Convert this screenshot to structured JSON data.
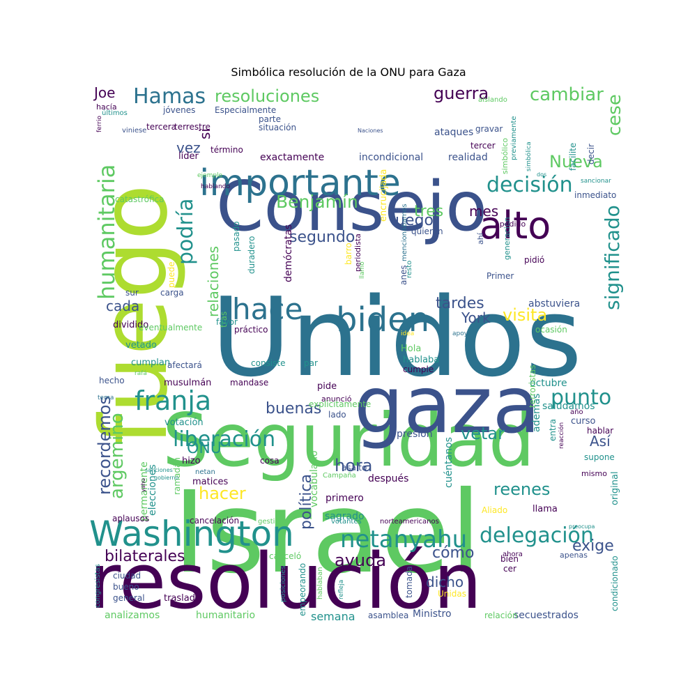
{
  "title": "Simbólica resolución de la ONU para Gaza",
  "palette": [
    "#440154",
    "#472c7a",
    "#3b528b",
    "#2c728e",
    "#21918c",
    "#28ae80",
    "#5ec962",
    "#addc30",
    "#fde725"
  ],
  "words": [
    {
      "text": "Israel"
    },
    {
      "text": "Unidos"
    },
    {
      "text": "Consejo"
    },
    {
      "text": "resolución"
    },
    {
      "text": "Seguridad"
    },
    {
      "text": "fuego"
    },
    {
      "text": "gaza"
    },
    {
      "text": "importante"
    },
    {
      "text": "Washington"
    },
    {
      "text": "biden"
    },
    {
      "text": "alto"
    },
    {
      "text": "hace"
    },
    {
      "text": "franja"
    },
    {
      "text": "netanyahu"
    },
    {
      "text": "liberación"
    },
    {
      "text": "delegación"
    },
    {
      "text": "decisión"
    },
    {
      "text": "punto"
    },
    {
      "text": "humanitaria"
    },
    {
      "text": "podría"
    },
    {
      "text": "resoluciones"
    },
    {
      "text": "significado"
    },
    {
      "text": "Hamas"
    },
    {
      "text": "cambiar"
    },
    {
      "text": "cese"
    },
    {
      "text": "Benjamín"
    },
    {
      "text": "Nueva"
    },
    {
      "text": "guerra"
    },
    {
      "text": "visita"
    },
    {
      "text": "vetar"
    },
    {
      "text": "segundo"
    },
    {
      "text": "luego"
    },
    {
      "text": "ayuda"
    },
    {
      "text": "reenes"
    },
    {
      "text": "hora"
    },
    {
      "text": "hacer"
    },
    {
      "text": "argemino"
    },
    {
      "text": "recordemos"
    },
    {
      "text": "bilaterales"
    },
    {
      "text": "exige"
    },
    {
      "text": "cómo"
    },
    {
      "text": "buenas"
    },
    {
      "text": "relaciones"
    },
    {
      "text": "tardes"
    },
    {
      "text": "York"
    },
    {
      "text": "ONU"
    },
    {
      "text": "política"
    },
    {
      "text": "dicho"
    },
    {
      "text": "tres"
    },
    {
      "text": "mes"
    },
    {
      "text": "Joe"
    },
    {
      "text": "si"
    },
    {
      "text": "vez"
    },
    {
      "text": "cada"
    },
    {
      "text": "Así"
    },
    {
      "text": "exactamente"
    },
    {
      "text": "incondicional"
    },
    {
      "text": "realidad"
    },
    {
      "text": "ataques"
    },
    {
      "text": "previamente"
    },
    {
      "text": "elecciones"
    },
    {
      "text": "demócratas"
    },
    {
      "text": "abstuviera"
    },
    {
      "text": "octubre"
    },
    {
      "text": "saludamos"
    },
    {
      "text": "presión"
    },
    {
      "text": "además"
    },
    {
      "text": "cuéntanos"
    },
    {
      "text": "vocabulario"
    },
    {
      "text": "permanente"
    },
    {
      "text": "después"
    },
    {
      "text": "primero"
    },
    {
      "text": "sagrado"
    },
    {
      "text": "semana"
    },
    {
      "text": "Ministro"
    },
    {
      "text": "secuestrados"
    },
    {
      "text": "analizamos"
    },
    {
      "text": "humanitario"
    },
    {
      "text": "traslado"
    },
    {
      "text": "votación"
    },
    {
      "text": "musulmán"
    },
    {
      "text": "mandase"
    },
    {
      "text": "pide"
    },
    {
      "text": "anunció"
    },
    {
      "text": "curso"
    },
    {
      "text": "hablar"
    },
    {
      "text": "supone"
    },
    {
      "text": "llama"
    },
    {
      "text": "terroristas"
    },
    {
      "text": "original"
    },
    {
      "text": "mismo"
    },
    {
      "text": "condicionado"
    },
    {
      "text": "ramadán"
    },
    {
      "text": "hizo"
    },
    {
      "text": "netan"
    },
    {
      "text": "matices"
    },
    {
      "text": "cosa"
    },
    {
      "text": "asalto"
    },
    {
      "text": "aplausos"
    },
    {
      "text": "cancelación"
    },
    {
      "text": "gestión"
    },
    {
      "text": "votantes"
    },
    {
      "text": "norteamericanos"
    },
    {
      "text": "canceló"
    },
    {
      "text": "ahora"
    },
    {
      "text": "cer"
    },
    {
      "text": "bien"
    },
    {
      "text": "apenas"
    },
    {
      "text": "ciudad"
    },
    {
      "text": "bueno"
    },
    {
      "text": "general"
    },
    {
      "text": "congresistas"
    },
    {
      "text": "posiciones"
    },
    {
      "text": "empeorando"
    },
    {
      "text": "hablaban"
    },
    {
      "text": "refleja"
    },
    {
      "text": "tomada"
    },
    {
      "text": "Unidas"
    },
    {
      "text": "asamblea"
    },
    {
      "text": "relación"
    },
    {
      "text": "dividido"
    },
    {
      "text": "vetado"
    },
    {
      "text": "cumplan"
    },
    {
      "text": "rafá"
    },
    {
      "text": "afectará"
    },
    {
      "text": "Hola"
    },
    {
      "text": "hablaba"
    },
    {
      "text": "cumple"
    },
    {
      "text": "par"
    },
    {
      "text": "idea"
    },
    {
      "text": "apoyo"
    },
    {
      "text": "ocasión"
    },
    {
      "text": "eventualmente"
    },
    {
      "text": "práctico"
    },
    {
      "text": "tras"
    },
    {
      "text": "favor"
    },
    {
      "text": "consiste"
    },
    {
      "text": "sur"
    },
    {
      "text": "carga"
    },
    {
      "text": "puede"
    },
    {
      "text": "pasado"
    },
    {
      "text": "duradero"
    },
    {
      "text": "periodista"
    },
    {
      "text": "mencionábamos"
    },
    {
      "text": "barro"
    },
    {
      "text": "llamó"
    },
    {
      "text": "encrucijada"
    },
    {
      "text": "generación"
    },
    {
      "text": "pidió"
    },
    {
      "text": "ahí"
    },
    {
      "text": "anes"
    },
    {
      "text": "resto"
    },
    {
      "text": "Primer"
    },
    {
      "text": "quieren"
    },
    {
      "text": "apedido"
    },
    {
      "text": "inmediato"
    },
    {
      "text": "ejemplo"
    },
    {
      "text": "hablando"
    },
    {
      "text": "dos"
    },
    {
      "text": "sancionar"
    },
    {
      "text": "catastrófica"
    },
    {
      "text": "líder"
    },
    {
      "text": "término"
    },
    {
      "text": "tercer"
    },
    {
      "text": "decir"
    },
    {
      "text": "facilite"
    },
    {
      "text": "simbólica"
    },
    {
      "text": "gravar"
    },
    {
      "text": "aislando"
    },
    {
      "text": "simbólico"
    },
    {
      "text": "Naciones"
    },
    {
      "text": "Especialmente"
    },
    {
      "text": "parte"
    },
    {
      "text": "situación"
    },
    {
      "text": "terrestre"
    },
    {
      "text": "tercera"
    },
    {
      "text": "viniese"
    },
    {
      "text": "ferrio"
    },
    {
      "text": "últimos"
    },
    {
      "text": "hacía"
    },
    {
      "text": "jóvenes"
    },
    {
      "text": "hecho"
    },
    {
      "text": "tema"
    },
    {
      "text": "brecha"
    },
    {
      "text": "sanciones"
    },
    {
      "text": "yahu"
    },
    {
      "text": "gobierno"
    },
    {
      "text": "Campaña"
    },
    {
      "text": "explícitamente"
    },
    {
      "text": "lado"
    },
    {
      "text": "año"
    },
    {
      "text": "entra"
    },
    {
      "text": "reacción"
    },
    {
      "text": "Aliado"
    },
    {
      "text": "preocupa"
    },
    {
      "text": "días"
    },
    {
      "text": "Rafá"
    },
    {
      "text": "mala"
    },
    {
      "text": "autoridad"
    }
  ]
}
